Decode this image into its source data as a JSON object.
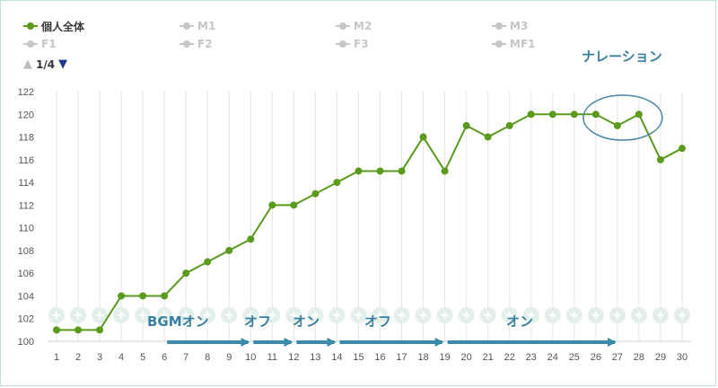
{
  "legend": {
    "items": [
      {
        "label": "個人全体",
        "active": true
      },
      {
        "label": "M1",
        "active": false
      },
      {
        "label": "M2",
        "active": false
      },
      {
        "label": "M3",
        "active": false
      },
      {
        "label": "F1",
        "active": false
      },
      {
        "label": "F2",
        "active": false
      },
      {
        "label": "F3",
        "active": false
      },
      {
        "label": "MF1",
        "active": false
      }
    ],
    "page": "1/4"
  },
  "annotations": {
    "narration": "ナレーション",
    "bgm_on": "BGMオン",
    "off1": "オフ",
    "on1": "オン",
    "off2": "オフ",
    "on2": "オン"
  },
  "colors": {
    "series": "#5a9a1c",
    "arrow": "#3a8aab",
    "annotation": "#3a7fa0",
    "grid": "#e6e6e6",
    "band_icon": "#e3f0ea"
  },
  "chart_data": {
    "type": "line",
    "title": "",
    "xlabel": "",
    "ylabel": "",
    "x": [
      1,
      2,
      3,
      4,
      5,
      6,
      7,
      8,
      9,
      10,
      11,
      12,
      13,
      14,
      15,
      16,
      17,
      18,
      19,
      20,
      21,
      22,
      23,
      24,
      25,
      26,
      27,
      28,
      29,
      30
    ],
    "series": [
      {
        "name": "個人全体",
        "values": [
          101,
          101,
          101,
          104,
          104,
          104,
          106,
          107,
          108,
          109,
          112,
          112,
          113,
          114,
          115,
          115,
          115,
          118,
          115,
          119,
          118,
          119,
          120,
          120,
          120,
          120,
          119,
          120,
          116,
          117
        ]
      }
    ],
    "ylim": [
      100,
      122
    ],
    "yticks": [
      100,
      102,
      104,
      106,
      108,
      110,
      112,
      114,
      116,
      118,
      120,
      122
    ],
    "grid": "vertical",
    "legend": "top-left",
    "segments": [
      {
        "label": "BGMオン",
        "from": 6,
        "to": 10
      },
      {
        "label": "オフ",
        "from": 10,
        "to": 12
      },
      {
        "label": "オン",
        "from": 12,
        "to": 14
      },
      {
        "label": "オフ",
        "from": 14,
        "to": 19
      },
      {
        "label": "オン",
        "from": 19,
        "to": 27
      }
    ],
    "highlight": {
      "label": "ナレーション",
      "x_from": 26,
      "x_to": 28
    }
  }
}
